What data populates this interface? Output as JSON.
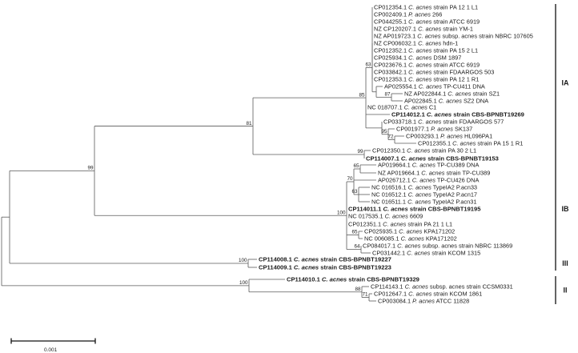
{
  "tree": {
    "scale_bar": "0.001",
    "taxa": [
      {
        "acc": "CP012354.1",
        "sp": "C. acnes",
        "rest": "strain PA 12 1 L1",
        "bold": false
      },
      {
        "acc": "CP002409.1",
        "sp": "P. acnes",
        "rest": "266",
        "bold": false
      },
      {
        "acc": "CP044255.1",
        "sp": "C. acnes",
        "rest": "strain ATCC 6919",
        "bold": false
      },
      {
        "acc": "NZ CP120207.1",
        "sp": "C. acnes",
        "rest": "strain YM-1",
        "bold": false
      },
      {
        "acc": "NZ AP019723.1",
        "sp": "C. acnes",
        "rest": "subsp. acnes strain NBRC 107605",
        "bold": false
      },
      {
        "acc": "NZ CP006032.1",
        "sp": "C. acnes",
        "rest": "hdn-1",
        "bold": false
      },
      {
        "acc": "CP012352.1",
        "sp": "C. acnes",
        "rest": "strain PA 15 2 L1",
        "bold": false
      },
      {
        "acc": "CP025934.1",
        "sp": "C. acnes",
        "rest": "DSM 1897",
        "bold": false
      },
      {
        "acc": "CP023676.1",
        "sp": "C. acnes",
        "rest": "strain ATCC 6919",
        "bold": false
      },
      {
        "acc": "CP033842.1",
        "sp": "C. acnes",
        "rest": "strain FDAARGOS 503",
        "bold": false
      },
      {
        "acc": "CP012353.1",
        "sp": "C. acnes",
        "rest": "strain PA 12 1 R1",
        "bold": false
      },
      {
        "acc": "AP025554.1",
        "sp": "C. acnes",
        "rest": "TP-CU411 DNA",
        "bold": false
      },
      {
        "acc": "NZ AP022844.1",
        "sp": "C. acnes",
        "rest": "strain SZ1",
        "bold": false
      },
      {
        "acc": "AP022845.1",
        "sp": "C. acnes",
        "rest": "SZ2 DNA",
        "bold": false
      },
      {
        "acc": "NC 018707.1",
        "sp": "C. acnes",
        "rest": "C1",
        "bold": false
      },
      {
        "acc": "CP114012.1",
        "sp": "C. acnes",
        "rest": "strain CBS-BPNBT19269",
        "bold": true
      },
      {
        "acc": "CP033718.1",
        "sp": "C. acnes",
        "rest": "strain FDAARGOS 577",
        "bold": false
      },
      {
        "acc": "CP001977.1",
        "sp": "P. acnes",
        "rest": "SK137",
        "bold": false
      },
      {
        "acc": "CP003293.1",
        "sp": "P. acnes",
        "rest": "HL096PA1",
        "bold": false
      },
      {
        "acc": "CP012355.1",
        "sp": "C. acnes",
        "rest": "strain PA 15 1 R1",
        "bold": false
      },
      {
        "acc": "CP012350.1",
        "sp": "C. acnes",
        "rest": "strain PA 30 2 L1",
        "bold": false
      },
      {
        "acc": "CP114007.1",
        "sp": "C. acnes",
        "rest": "strain CBS-BPNBT19153",
        "bold": true
      },
      {
        "acc": "AP019664.1",
        "sp": "C. acnes",
        "rest": "TP-CU389 DNA",
        "bold": false
      },
      {
        "acc": "NZ AP019664.1",
        "sp": "C. acnes",
        "rest": "strain TP-CU389",
        "bold": false
      },
      {
        "acc": "AP026712.1",
        "sp": "C. acnes",
        "rest": "TP-CU426 DNA",
        "bold": false
      },
      {
        "acc": "NC 016516.1",
        "sp": "C. acnes",
        "rest": "TypeIA2 P.acn33",
        "bold": false
      },
      {
        "acc": "NC 016512.1",
        "sp": "C. acnes",
        "rest": "TypeIA2 P.acn17",
        "bold": false
      },
      {
        "acc": "NC 016511.1",
        "sp": "C. acnes",
        "rest": "TypeIA2 P.acn31",
        "bold": false
      },
      {
        "acc": "CP114011.1",
        "sp": "C. acnes",
        "rest": "strain CBS-BPNBT19195",
        "bold": true
      },
      {
        "acc": "NC 017535.1",
        "sp": "C. acnes",
        "rest": "6609",
        "bold": false
      },
      {
        "acc": "CP012351.1",
        "sp": "C. acnes",
        "rest": "strain PA 21 1 L1",
        "bold": false
      },
      {
        "acc": "CP025935.1",
        "sp": "C. acnes",
        "rest": "KPA171202",
        "bold": false
      },
      {
        "acc": "NC 006085.1",
        "sp": "C. acnes",
        "rest": "KPA171202",
        "bold": false
      },
      {
        "acc": "CP084017.1",
        "sp": "C. acnes",
        "rest": "subsp. acnes strain NBRC 113869",
        "bold": false
      },
      {
        "acc": "CP031442.1",
        "sp": "C. acnes",
        "rest": "strain KCOM 1315",
        "bold": false
      },
      {
        "acc": "CP114008.1",
        "sp": "C. acnes",
        "rest": "strain CBS-BPNBT19227",
        "bold": true
      },
      {
        "acc": "CP114009.1",
        "sp": "C. acnes",
        "rest": "strain CBS-BPNBT19223",
        "bold": true
      },
      {
        "acc": "CP114010.1",
        "sp": "C. acnes",
        "rest": "strain CBS-BPNBT19329",
        "bold": true
      },
      {
        "acc": "CP114143.1",
        "sp": "C. acnes",
        "rest": "subsp. acnes strain CCSM0331",
        "bold": false
      },
      {
        "acc": "CP012647.1",
        "sp": "C. acnes",
        "rest": "strain KCOM 1861",
        "bold": false
      },
      {
        "acc": "CP003084.1",
        "sp": "P. acnes",
        "rest": "ATCC 11828",
        "bold": false
      }
    ],
    "supports": {
      "root_ia_ib": "99",
      "ia": "81",
      "ia_core": "85",
      "ia_sub": "63",
      "sz": "87",
      "pa151": "72",
      "fda577": "95",
      "cbs19153": "99",
      "ib": "100",
      "cu389": "65",
      "type_ia2": "70",
      "acn33": "63",
      "kpa": "65",
      "kcom1315": "64",
      "grp3": "100",
      "grp2": "100",
      "kcom1861": "88",
      "atcc11828": "71"
    },
    "clades": [
      {
        "label": "IA",
        "from": 0,
        "to": 21
      },
      {
        "label": "IB",
        "from": 22,
        "to": 34
      },
      {
        "label": "III",
        "from": 35,
        "to": 36
      },
      {
        "label": "II",
        "from": 37,
        "to": 40
      }
    ]
  }
}
